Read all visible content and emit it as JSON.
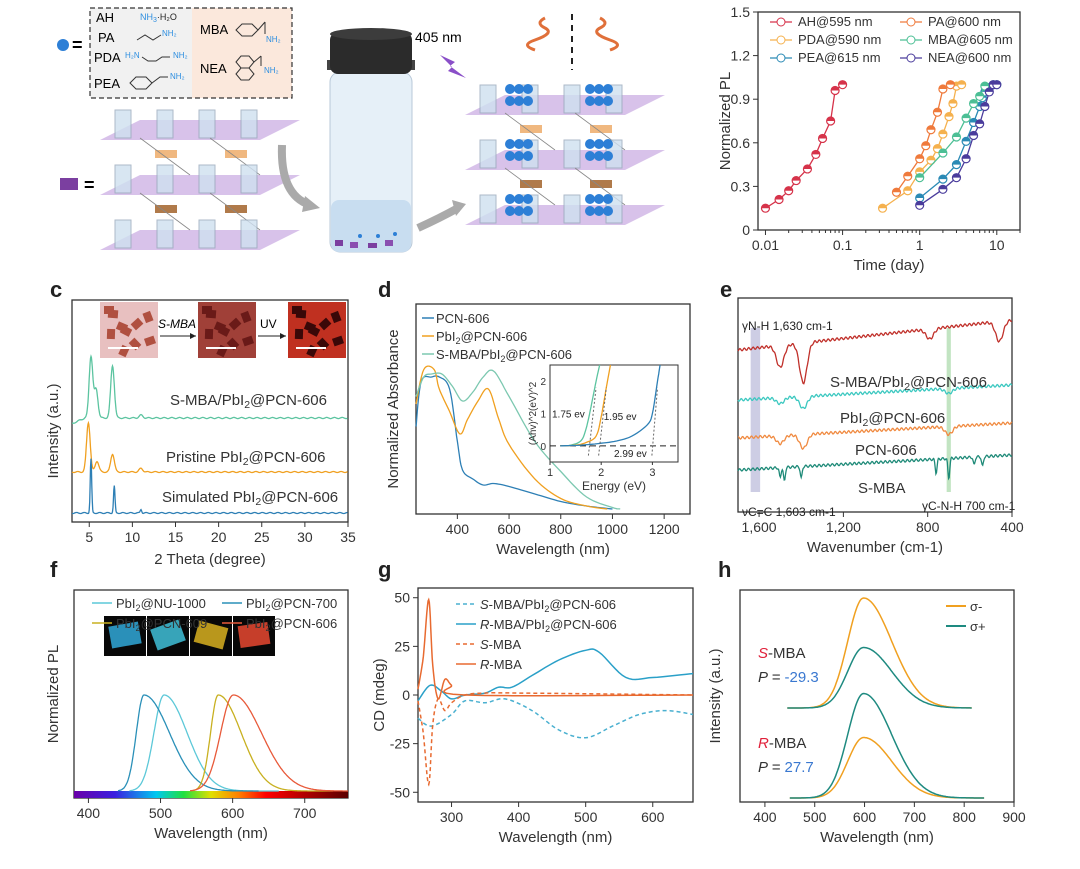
{
  "panel_labels": {
    "c": "c",
    "d": "d",
    "e": "e",
    "f": "f",
    "g": "g",
    "h": "h"
  },
  "schematic": {
    "legend_amines": [
      {
        "name": "AH",
        "formula": "NH3·H2O"
      },
      {
        "name": "PA",
        "formula": "NH2"
      },
      {
        "name": "PDA",
        "formula": "H2N NH2"
      },
      {
        "name": "PEA",
        "formula": "NH2"
      },
      {
        "name": "MBA",
        "formula": "NH2"
      },
      {
        "name": "NEA",
        "formula": "NH2"
      }
    ],
    "equals": "=",
    "excitation_label": "405 nm",
    "colors": {
      "sphere": "#2d7fd6",
      "cluster": "#7b3fa0",
      "plane": "#b08ad0",
      "arrow": "#e06a3a"
    }
  },
  "chart_data": [
    {
      "id": "b",
      "type": "line",
      "xscale": "log",
      "xlabel": "Time (day)",
      "ylabel": "Normalized PL",
      "xlim": [
        0.008,
        20
      ],
      "ylim": [
        0,
        1.5
      ],
      "xticks": [
        0.01,
        0.1,
        1,
        10
      ],
      "xtick_labels": [
        "0.01",
        "0.1",
        "1",
        "10"
      ],
      "yticks": [
        0,
        0.3,
        0.6,
        0.9,
        1.2,
        1.5
      ],
      "ytick_labels": [
        "0",
        "0.3",
        "0.6",
        "0.9",
        "1.2",
        "1.5"
      ],
      "legend_position": "top",
      "series": [
        {
          "name": "AH@595 nm",
          "color": "#d6334a",
          "x": [
            0.01,
            0.015,
            0.02,
            0.025,
            0.035,
            0.045,
            0.055,
            0.07,
            0.08,
            0.1
          ],
          "y": [
            0.15,
            0.21,
            0.27,
            0.34,
            0.42,
            0.52,
            0.63,
            0.75,
            0.96,
            1.0
          ]
        },
        {
          "name": "PDA@590 nm",
          "color": "#f5b14e",
          "x": [
            0.33,
            0.7,
            1,
            1.4,
            1.7,
            2,
            2.4,
            2.7,
            3,
            3.5
          ],
          "y": [
            0.15,
            0.27,
            0.4,
            0.48,
            0.56,
            0.66,
            0.78,
            0.87,
            0.99,
            1.0
          ]
        },
        {
          "name": "PEA@615 nm",
          "color": "#2a8ab5",
          "x": [
            1,
            2,
            3,
            4,
            5,
            6,
            6.5,
            7,
            8,
            9,
            10
          ],
          "y": [
            0.22,
            0.35,
            0.45,
            0.61,
            0.74,
            0.85,
            0.91,
            0.95,
            0.98,
            1.0,
            1.0
          ]
        },
        {
          "name": "PA@600 nm",
          "color": "#ef7a3c",
          "x": [
            0.5,
            0.7,
            1,
            1.2,
            1.4,
            1.7,
            2,
            2.5
          ],
          "y": [
            0.26,
            0.37,
            0.49,
            0.58,
            0.69,
            0.81,
            0.97,
            1.0
          ]
        },
        {
          "name": "MBA@605 nm",
          "color": "#4cbf95",
          "x": [
            1,
            2,
            3,
            4,
            5,
            6,
            7
          ],
          "y": [
            0.36,
            0.53,
            0.64,
            0.77,
            0.87,
            0.92,
            0.99
          ]
        },
        {
          "name": "NEA@600 nm",
          "color": "#4a3c9c",
          "x": [
            1,
            2,
            3,
            4,
            5,
            6,
            7,
            8,
            9,
            10
          ],
          "y": [
            0.17,
            0.28,
            0.36,
            0.49,
            0.65,
            0.73,
            0.85,
            0.95,
            1.0,
            1.0
          ]
        }
      ]
    },
    {
      "id": "c",
      "type": "line",
      "xlabel": "2 Theta (degree)",
      "ylabel": "Intensity (a.u.)",
      "xlim": [
        3,
        35
      ],
      "xticks": [
        5,
        10,
        15,
        20,
        25,
        30,
        35
      ],
      "xtick_labels": [
        "5",
        "10",
        "15",
        "20",
        "25",
        "30",
        "35"
      ],
      "inset_labels": {
        "step1": "S-MBA",
        "step2": "UV"
      },
      "series": [
        {
          "name": "S-MBA/PbI2@PCN-606",
          "color": "#5cc4a0",
          "offset": 2,
          "peaks": [
            [
              5.2,
              0.65
            ],
            [
              5.8,
              0.3
            ],
            [
              7.7,
              0.55
            ],
            [
              11,
              0.03
            ]
          ],
          "baseline": 0.05
        },
        {
          "name": "Pristine  PbI2@PCN-606",
          "color": "#f0a020",
          "offset": 1,
          "peaks": [
            [
              4.9,
              0.55
            ],
            [
              5.9,
              0.12
            ],
            [
              7.7,
              0.2
            ],
            [
              11,
              0.04
            ]
          ],
          "baseline": 0.0
        },
        {
          "name": "Simulated PbI2@PCN-606",
          "color": "#2d7fb5",
          "offset": 0,
          "peaks": [
            [
              5.2,
              0.6
            ],
            [
              7.9,
              0.3
            ],
            [
              11,
              0.04
            ]
          ],
          "baseline": 0.0
        }
      ]
    },
    {
      "id": "d",
      "type": "line",
      "xlabel": "Wavelength (nm)",
      "ylabel": "Normalized Absorbance",
      "xlim": [
        240,
        1300
      ],
      "xticks": [
        400,
        600,
        800,
        1000,
        1200
      ],
      "xtick_labels": [
        "400",
        "600",
        "800",
        "1000",
        "1200"
      ],
      "series": [
        {
          "name": "PCN-606",
          "color": "#2d7fb5",
          "x": [
            240,
            260,
            300,
            330,
            370,
            400,
            420,
            460,
            500,
            540,
            600,
            700,
            800,
            900,
            1000
          ],
          "y": [
            0.55,
            0.85,
            0.88,
            0.88,
            0.8,
            0.45,
            0.26,
            0.2,
            0.16,
            0.17,
            0.15,
            0.1,
            0.05,
            0.02,
            0.0
          ]
        },
        {
          "name": "PbI2@PCN-606",
          "color": "#f0a020",
          "x": [
            240,
            270,
            310,
            330,
            370,
            410,
            440,
            480,
            520,
            560,
            600,
            700,
            800,
            900,
            980
          ],
          "y": [
            0.7,
            0.93,
            0.93,
            0.8,
            0.65,
            0.5,
            0.6,
            0.72,
            0.8,
            0.6,
            0.43,
            0.2,
            0.07,
            0.02,
            0.0
          ]
        },
        {
          "name": "S-MBA/PbI2@PCN-606",
          "color": "#7cc8b0",
          "x": [
            240,
            270,
            300,
            340,
            380,
            420,
            460,
            500,
            540,
            600,
            700,
            800,
            900,
            1000,
            1030
          ],
          "y": [
            0.75,
            0.88,
            0.9,
            0.9,
            0.82,
            0.72,
            0.78,
            0.88,
            0.92,
            0.75,
            0.45,
            0.25,
            0.08,
            0.01,
            0.0
          ]
        }
      ],
      "inset": {
        "xlabel": "Energy (eV)",
        "ylabel": "(Ahv)^2(eV)^2",
        "xlim": [
          1,
          3.5
        ],
        "ylim": [
          -0.5,
          2.5
        ],
        "xticks": [
          1,
          2,
          3
        ],
        "yticks": [
          0,
          1,
          2
        ],
        "annotations": [
          "1.75 ev",
          "1.95 ev",
          "2.99 ev"
        ],
        "series": [
          {
            "name": "S-MBA/PbI2@PCN-606",
            "color": "#5cc4a0",
            "x": [
              1.2,
              1.4,
              1.6,
              1.7,
              1.8,
              1.9,
              1.97
            ],
            "y": [
              0,
              0.02,
              0.15,
              0.5,
              1.2,
              2.0,
              2.5
            ]
          },
          {
            "name": "PbI2@PCN-606",
            "color": "#f0a020",
            "x": [
              1.2,
              1.5,
              1.7,
              1.9,
              2.0,
              2.1,
              2.18
            ],
            "y": [
              0,
              0.02,
              0.1,
              0.3,
              0.9,
              1.8,
              2.5
            ]
          },
          {
            "name": "PCN-606",
            "color": "#2d7fb5",
            "x": [
              1.2,
              1.6,
              2.0,
              2.3,
              2.6,
              2.9,
              3.0,
              3.1,
              3.15
            ],
            "y": [
              0,
              0.02,
              0.08,
              0.15,
              0.3,
              0.65,
              1.0,
              2.0,
              2.5
            ]
          }
        ]
      }
    },
    {
      "id": "e",
      "type": "line",
      "xlabel": "Wavenumber (cm-1)",
      "xlim": [
        1700,
        400
      ],
      "xticks": [
        1600,
        1200,
        800,
        400
      ],
      "xtick_labels": [
        "1,600",
        "1,200",
        "800",
        "400"
      ],
      "annotations": {
        "nh": "γN-H 1,630 cm-1",
        "cc": "νC=C 1,603 cm-1",
        "cnh": "γC-N-H 700 cm-1"
      },
      "bands": [
        {
          "from": 1640,
          "to": 1595,
          "color": "#b8b8d8"
        },
        {
          "from": 710,
          "to": 690,
          "color": "#a8d8a8"
        }
      ],
      "series": [
        {
          "name": "S-MBA/PbI2@PCN-606",
          "color": "#c0302a",
          "offset": 3
        },
        {
          "name": "PbI2@PCN-606",
          "color": "#3cc8c0",
          "offset": 2
        },
        {
          "name": "PCN-606",
          "color": "#f08a40",
          "offset": 1
        },
        {
          "name": "S-MBA",
          "color": "#1e8a78",
          "offset": 0
        }
      ]
    },
    {
      "id": "f",
      "type": "line",
      "xlabel": "Wavelength (nm)",
      "ylabel": "Normalized PL",
      "xlim": [
        380,
        760
      ],
      "xticks": [
        400,
        500,
        600,
        700
      ],
      "xtick_labels": [
        "400",
        "500",
        "600",
        "700"
      ],
      "series": [
        {
          "name": "PbI2@NU-1000",
          "color": "#5cc8d8",
          "peak": 505,
          "width_l": 20,
          "width_r": 45
        },
        {
          "name": "PbI2@PCN-700",
          "color": "#2a90b8",
          "peak": 477,
          "width_l": 15,
          "width_r": 50
        },
        {
          "name": "PbI2@PCN-609",
          "color": "#c8b020",
          "peak": 580,
          "width_l": 15,
          "width_r": 45
        },
        {
          "name": "PbI2@PCN-606",
          "color": "#e85a3a",
          "peak": 601,
          "width_l": 25,
          "width_r": 55
        }
      ]
    },
    {
      "id": "g",
      "type": "line",
      "xlabel": "Wavelength (nm)",
      "ylabel": "CD (mdeg)",
      "xlim": [
        250,
        660
      ],
      "ylim": [
        -55,
        55
      ],
      "xticks": [
        300,
        400,
        500,
        600
      ],
      "xtick_labels": [
        "300",
        "400",
        "500",
        "600"
      ],
      "yticks": [
        -50,
        -25,
        0,
        25,
        50
      ],
      "ytick_labels": [
        "-50",
        "-25",
        "0",
        "25",
        "50"
      ],
      "series": [
        {
          "name": "S-MBA/PbI2@PCN-606",
          "color": "#4ab0d0",
          "dash": true,
          "x": [
            250,
            270,
            300,
            320,
            350,
            380,
            420,
            460,
            500,
            540,
            580,
            620,
            660
          ],
          "y": [
            -12,
            -16,
            -10,
            -3,
            -4,
            -2,
            -8,
            -18,
            -22,
            -16,
            -10,
            -8,
            -10
          ]
        },
        {
          "name": "R-MBA/PbI2@PCN-606",
          "color": "#2aa0c8",
          "dash": false,
          "x": [
            250,
            268,
            285,
            300,
            320,
            350,
            370,
            390,
            420,
            460,
            500,
            520,
            560,
            600,
            660
          ],
          "y": [
            -3,
            5,
            2,
            -2,
            0,
            1,
            4,
            4,
            10,
            18,
            23,
            22,
            9,
            9,
            11
          ]
        },
        {
          "name": "S-MBA",
          "color": "#e86a30",
          "dash": true,
          "x": [
            250,
            258,
            266,
            272,
            280,
            290,
            300,
            320,
            350,
            400,
            660
          ],
          "y": [
            -3,
            -20,
            -46,
            -15,
            -2,
            -8,
            -4,
            0,
            1,
            1,
            0
          ]
        },
        {
          "name": "R-MBA",
          "color": "#e86a30",
          "dash": false,
          "x": [
            250,
            258,
            266,
            272,
            280,
            290,
            300,
            320,
            660
          ],
          "y": [
            3,
            20,
            49,
            15,
            -2,
            8,
            5,
            0,
            0
          ]
        }
      ]
    },
    {
      "id": "h",
      "type": "line",
      "xlabel": "Wavelength (nm)",
      "ylabel": "Intensity (a.u.)",
      "xlim": [
        350,
        900
      ],
      "xticks": [
        400,
        500,
        600,
        700,
        800,
        900
      ],
      "xtick_labels": [
        "400",
        "500",
        "600",
        "700",
        "800",
        "900"
      ],
      "legend": [
        {
          "name": "σ-",
          "color": "#f0a020"
        },
        {
          "name": "σ+",
          "color": "#1e8a80"
        }
      ],
      "groups": [
        {
          "label_prefix": "S",
          "label_suffix": "-MBA",
          "p_label": "P = ",
          "p_value": "-29.3",
          "sigma_minus": 1.0,
          "sigma_plus": 0.55
        },
        {
          "label_prefix": "R",
          "label_suffix": "-MBA",
          "p_label": "P = ",
          "p_value": "27.7",
          "sigma_minus": 0.55,
          "sigma_plus": 0.95
        }
      ]
    }
  ]
}
